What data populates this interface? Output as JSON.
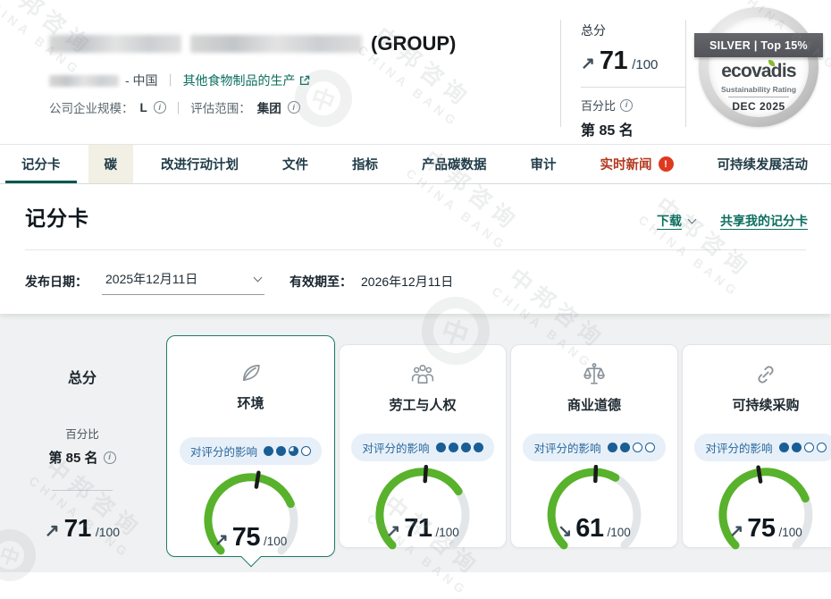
{
  "watermark": {
    "cn": "中邦咨询",
    "en": "CHINA BANG",
    "logo_char": "中"
  },
  "header": {
    "company_suffix": "(GROUP)",
    "country": "- 中国",
    "divider": "｜",
    "industry_link": "其他食物制品的生产",
    "size_label": "公司企业规模：",
    "size_value": "L",
    "scope_label": "评估范围：",
    "scope_value": "集团",
    "info_glyph": "i",
    "score_panel": {
      "label": "总分",
      "arrow": "↗",
      "score": "71",
      "max": "/100",
      "percentile_label": "百分比",
      "percentile_value": "第 85 名"
    },
    "medal": {
      "banner": "SILVER | Top 15%",
      "brand": "ecovadis",
      "tagline": "Sustainability Rating",
      "period": "DEC 2025"
    }
  },
  "tabs": [
    {
      "label": "记分卡",
      "state": "active"
    },
    {
      "label": "碳",
      "state": "highlight"
    },
    {
      "label": "改进行动计划",
      "state": "normal"
    },
    {
      "label": "文件",
      "state": "normal"
    },
    {
      "label": "指标",
      "state": "normal"
    },
    {
      "label": "产品碳数据",
      "state": "normal"
    },
    {
      "label": "审计",
      "state": "normal"
    },
    {
      "label": "实时新闻",
      "state": "alert",
      "badge": "!"
    },
    {
      "label": "可持续发展活动",
      "state": "normal"
    }
  ],
  "scorecard_bar": {
    "title": "记分卡",
    "download": "下载",
    "share": "共享我的记分卡",
    "publish_label": "发布日期：",
    "publish_value": "2025年12月11日",
    "valid_label": "有效期至：",
    "valid_value": "2026年12月11日"
  },
  "summary": {
    "title": "总分",
    "percentile_label": "百分比",
    "percentile_value": "第 85 名",
    "arrow": "↗",
    "score": "71",
    "max": "/100"
  },
  "cards_section": {
    "impact_label": "对评分的影响",
    "max_label": "/100",
    "items": [
      {
        "title": "环境",
        "icon": "leaf-icon",
        "dots": [
          "full",
          "full",
          "three-quarter",
          "empty"
        ],
        "arrow": "↗",
        "score": 75,
        "needle_angle": 9,
        "selected": true
      },
      {
        "title": "劳工与人权",
        "icon": "people-icon",
        "dots": [
          "full",
          "full",
          "full",
          "full"
        ],
        "arrow": "↗",
        "score": 71,
        "needle_angle": 4,
        "selected": false
      },
      {
        "title": "商业道德",
        "icon": "scales-icon",
        "dots": [
          "full",
          "full",
          "empty",
          "empty"
        ],
        "arrow": "↘",
        "score": 61,
        "needle_angle": 2,
        "selected": false
      },
      {
        "title": "可持续采购",
        "icon": "link-icon",
        "dots": [
          "full",
          "full",
          "empty",
          "empty"
        ],
        "arrow": "↗",
        "score": 75,
        "needle_angle": -9,
        "selected": false
      }
    ]
  },
  "colors": {
    "accent_teal": "#0b6e5f",
    "active_tab_underline": "#00564c",
    "gauge_green": "#58b22c",
    "gauge_track": "#e3e6e9",
    "alert_red": "#b23a20",
    "badge_red": "#df391f",
    "dot_blue": "#1a5e96",
    "pill_bg": "#e7f0f9",
    "cream_tab": "#f2efe4"
  }
}
